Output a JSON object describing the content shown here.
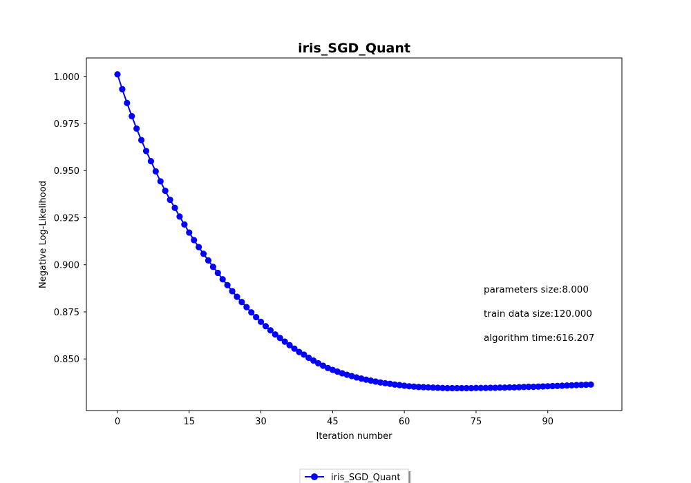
{
  "chart_data": {
    "type": "line",
    "title": "iris_SGD_Quant",
    "xlabel": "Iteration number",
    "ylabel": "Negative Log-Likelihood",
    "xlim": [
      -6.5,
      105.5
    ],
    "ylim": [
      0.8226,
      1.0098
    ],
    "x_ticks": [
      0,
      15,
      30,
      45,
      60,
      75,
      90
    ],
    "y_ticks": [
      0.85,
      0.875,
      0.9,
      0.925,
      0.95,
      0.975,
      1.0
    ],
    "y_tick_labels": [
      "0.850",
      "0.875",
      "0.900",
      "0.925",
      "0.950",
      "0.975",
      "1.000"
    ],
    "grid": false,
    "legend_position": "bottom-center",
    "annotations": [
      "parameters size:8.000",
      "train data size:120.000",
      "algorithm time:616.207"
    ],
    "series": [
      {
        "name": "iris_SGD_Quant",
        "color": "#0000ff",
        "marker": "circle",
        "x": [
          0,
          1,
          2,
          3,
          4,
          5,
          6,
          7,
          8,
          9,
          10,
          11,
          12,
          13,
          14,
          15,
          16,
          17,
          18,
          19,
          20,
          21,
          22,
          23,
          24,
          25,
          26,
          27,
          28,
          29,
          30,
          31,
          32,
          33,
          34,
          35,
          36,
          37,
          38,
          39,
          40,
          41,
          42,
          43,
          44,
          45,
          46,
          47,
          48,
          49,
          50,
          51,
          52,
          53,
          54,
          55,
          56,
          57,
          58,
          59,
          60,
          61,
          62,
          63,
          64,
          65,
          66,
          67,
          68,
          69,
          70,
          71,
          72,
          73,
          74,
          75,
          76,
          77,
          78,
          79,
          80,
          81,
          82,
          83,
          84,
          85,
          86,
          87,
          88,
          89,
          90,
          91,
          92,
          93,
          94,
          95,
          96,
          97,
          98,
          99
        ],
        "values": [
          1.0011,
          0.9932,
          0.9859,
          0.9789,
          0.9723,
          0.9662,
          0.9604,
          0.955,
          0.9496,
          0.9443,
          0.9393,
          0.9345,
          0.9302,
          0.9256,
          0.9214,
          0.9171,
          0.9131,
          0.9094,
          0.9058,
          0.9023,
          0.8989,
          0.8957,
          0.8923,
          0.8892,
          0.886,
          0.883,
          0.8802,
          0.8775,
          0.8747,
          0.8722,
          0.8697,
          0.8674,
          0.8652,
          0.863,
          0.8611,
          0.8592,
          0.8573,
          0.8555,
          0.8537,
          0.8523,
          0.8506,
          0.8491,
          0.8477,
          0.8464,
          0.8452,
          0.8442,
          0.8433,
          0.8424,
          0.8416,
          0.8409,
          0.8402,
          0.8396,
          0.839,
          0.8385,
          0.838,
          0.8375,
          0.8371,
          0.8368,
          0.8364,
          0.8361,
          0.8358,
          0.8355,
          0.8353,
          0.8351,
          0.835,
          0.8349,
          0.8348,
          0.8347,
          0.8346,
          0.8345,
          0.8345,
          0.8345,
          0.8345,
          0.8345,
          0.8345,
          0.8346,
          0.8346,
          0.8346,
          0.8347,
          0.8347,
          0.8348,
          0.8348,
          0.8349,
          0.8349,
          0.835,
          0.8351,
          0.8352,
          0.8352,
          0.8353,
          0.8354,
          0.8355,
          0.8356,
          0.8357,
          0.8358,
          0.8359,
          0.836,
          0.8361,
          0.8362,
          0.8363,
          0.8364
        ]
      }
    ]
  }
}
